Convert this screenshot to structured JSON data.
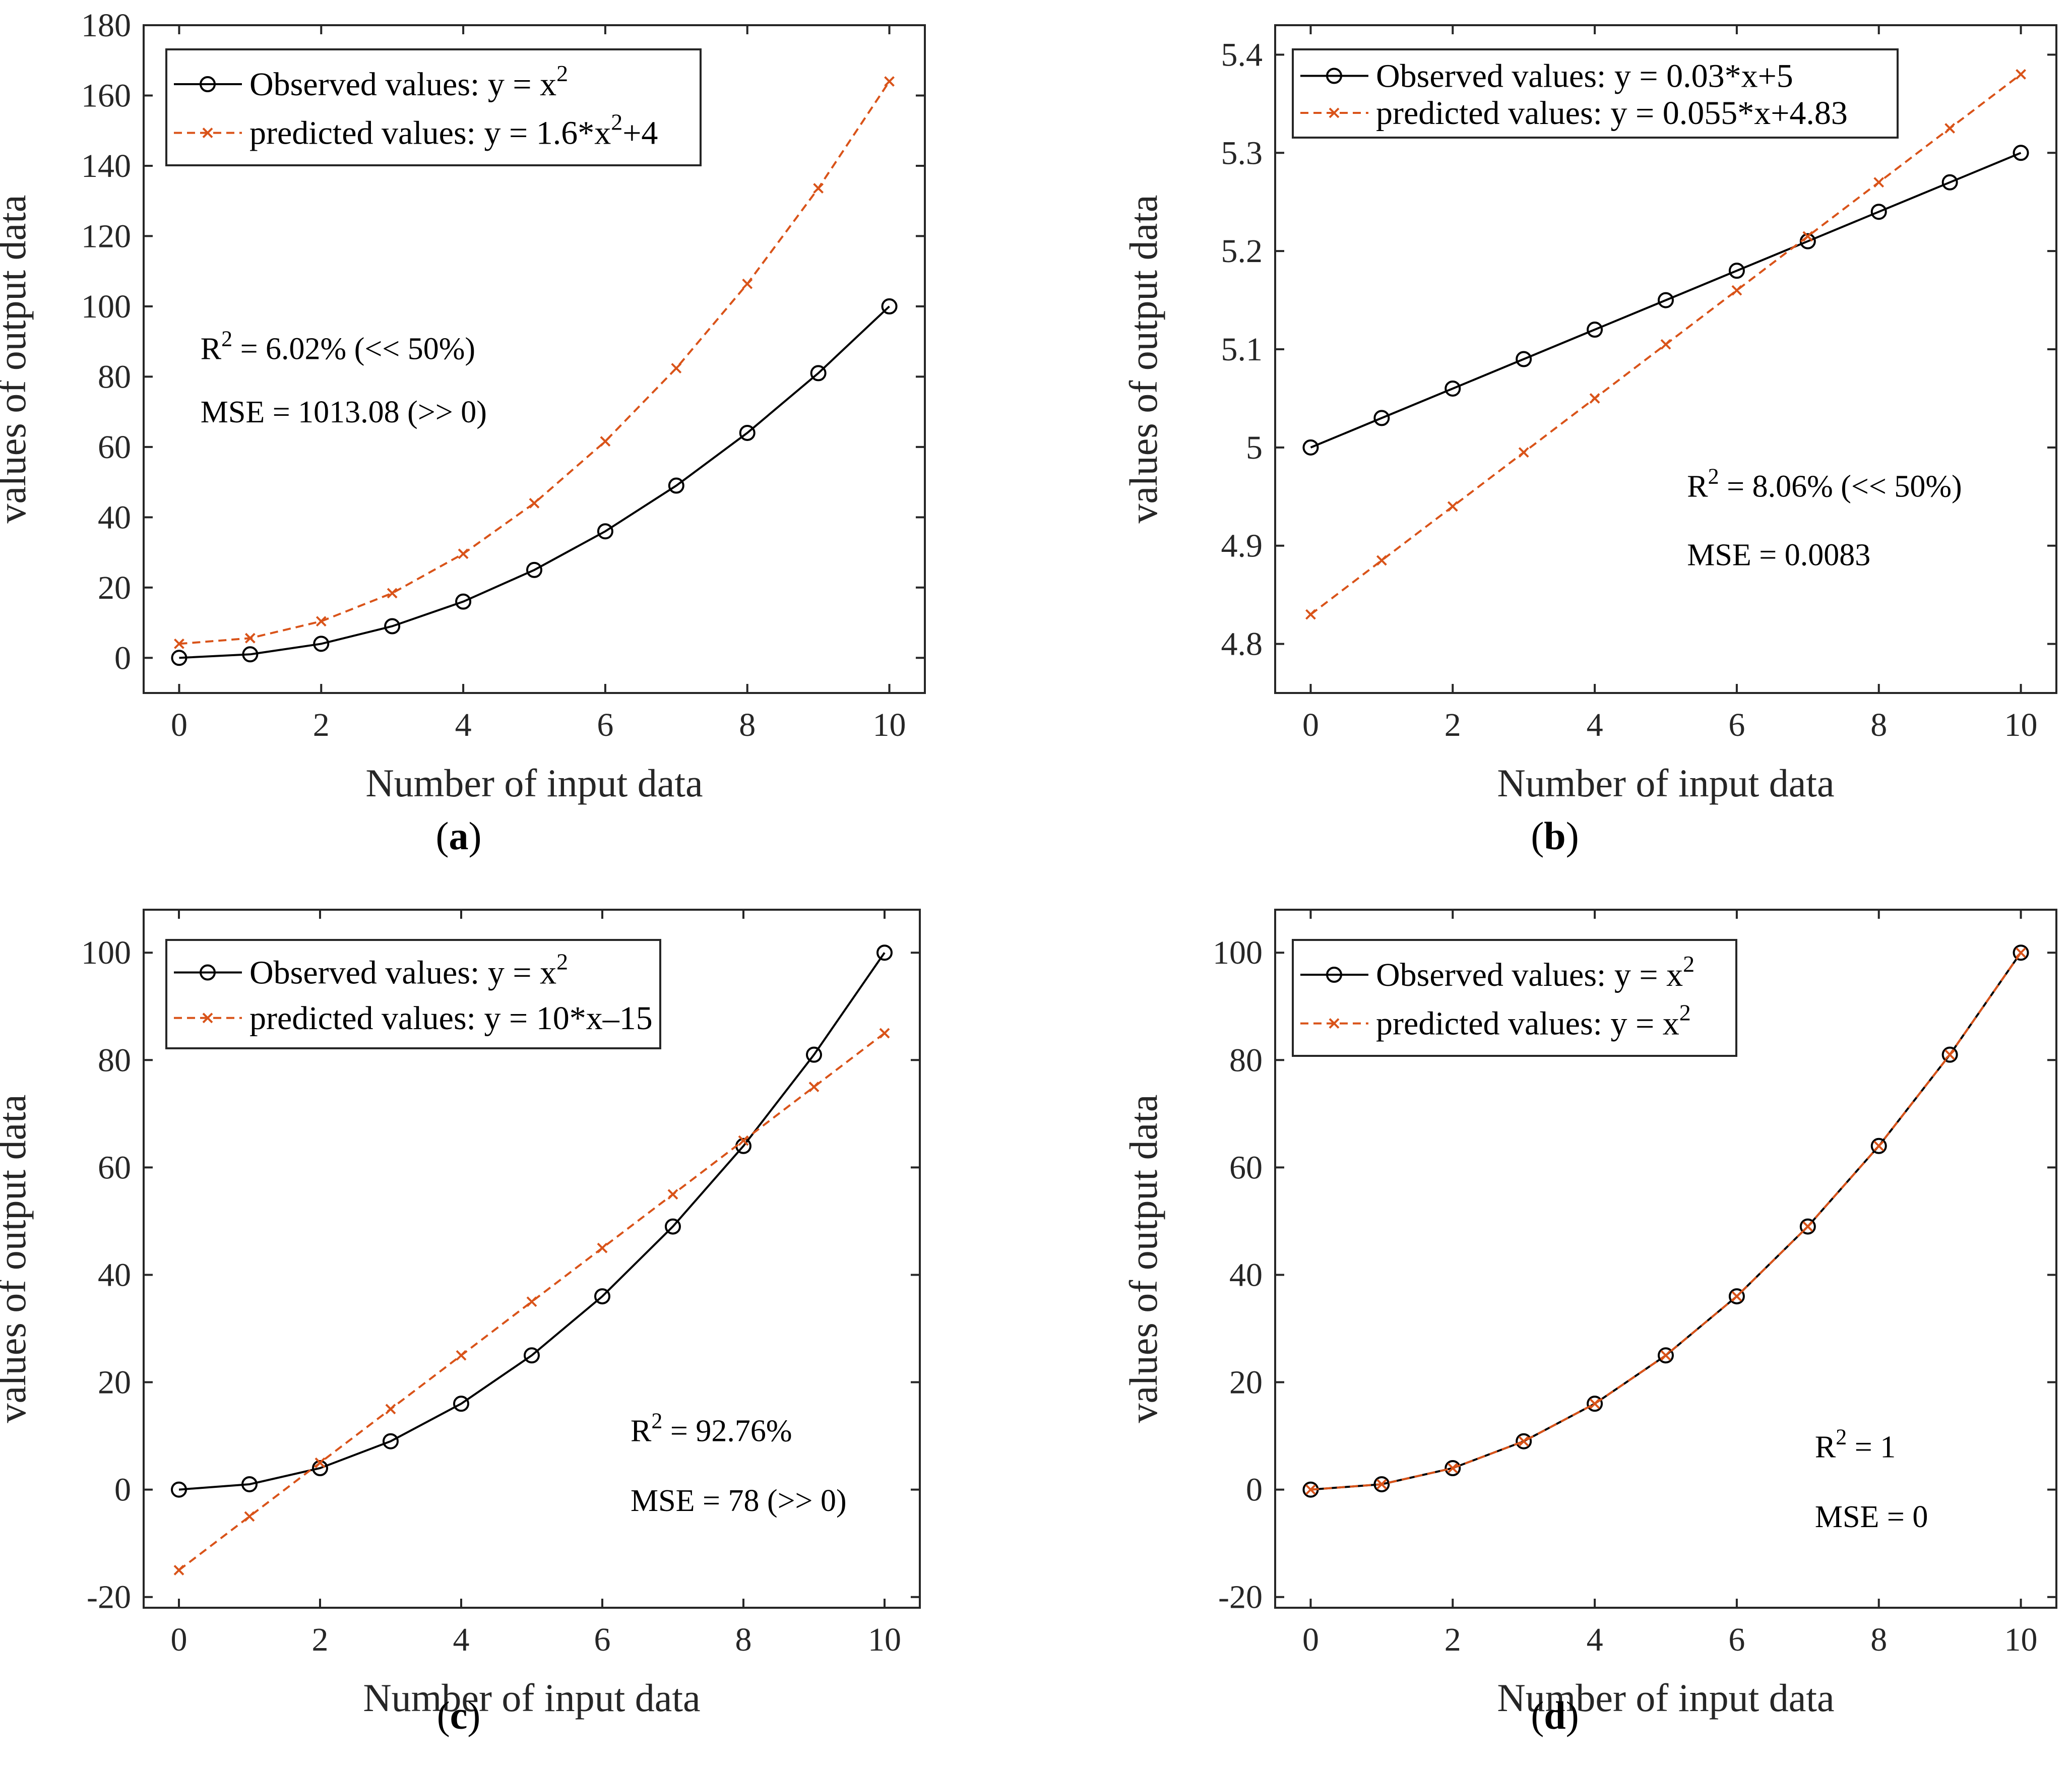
{
  "chart_data": [
    {
      "type": "line",
      "panel": "a",
      "caption_label": "a",
      "xlabel": "Number of input data",
      "ylabel": "values of output data",
      "xlim": [
        -0.5,
        10.5
      ],
      "ylim": [
        -10,
        180
      ],
      "xticks": [
        0,
        2,
        4,
        6,
        8,
        10
      ],
      "yticks": [
        0,
        20,
        40,
        60,
        80,
        100,
        120,
        140,
        160,
        180
      ],
      "x": [
        0,
        1,
        2,
        3,
        4,
        5,
        6,
        7,
        8,
        9,
        10
      ],
      "series": [
        {
          "name": "Observed values: y = x",
          "sup": "2",
          "tail": "",
          "color": "#000000",
          "dash": "solid",
          "marker": "circle",
          "values": [
            0,
            1,
            4,
            9,
            16,
            25,
            36,
            49,
            64,
            81,
            100
          ]
        },
        {
          "name": "predicted values: y = 1.6*x",
          "sup": "2",
          "tail": "+4",
          "color": "#D95319",
          "dash": "dashed",
          "marker": "x",
          "values": [
            4,
            5.6,
            10.4,
            18.4,
            29.6,
            44,
            61.6,
            82.4,
            106.4,
            133.6,
            164
          ]
        }
      ],
      "annotations": {
        "r2_value": " = 6.02% (<< 50%)",
        "mse": "MSE = 1013.08 (>> 0)"
      },
      "annotation_pos": {
        "r2": [
          0.3,
          85
        ],
        "mse": [
          0.3,
          67
        ]
      }
    },
    {
      "type": "line",
      "panel": "b",
      "caption_label": "b",
      "xlabel": "Number of input data",
      "ylabel": "values of output data",
      "xlim": [
        -0.5,
        10.5
      ],
      "ylim": [
        4.75,
        5.43
      ],
      "xticks": [
        0,
        2,
        4,
        6,
        8,
        10
      ],
      "yticks": [
        4.8,
        4.9,
        5,
        5.1,
        5.2,
        5.3,
        5.4
      ],
      "ytick_labels": [
        "4.8",
        "4.9",
        "5",
        "5.1",
        "5.2",
        "5.3",
        "5.4"
      ],
      "x": [
        0,
        1,
        2,
        3,
        4,
        5,
        6,
        7,
        8,
        9,
        10
      ],
      "series": [
        {
          "name": "Observed values: y = 0.03*x+5",
          "sup": "",
          "tail": "",
          "color": "#000000",
          "dash": "solid",
          "marker": "circle",
          "values": [
            5,
            5.03,
            5.06,
            5.09,
            5.12,
            5.15,
            5.18,
            5.21,
            5.24,
            5.27,
            5.3
          ]
        },
        {
          "name": "predicted values: y = 0.055*x+4.83",
          "sup": "",
          "tail": "",
          "color": "#D95319",
          "dash": "dashed",
          "marker": "x",
          "values": [
            4.83,
            4.885,
            4.94,
            4.995,
            5.05,
            5.105,
            5.16,
            5.215,
            5.27,
            5.325,
            5.38
          ]
        }
      ],
      "annotations": {
        "r2_value": " = 8.06% (<< 50%)",
        "mse": "MSE = 0.0083"
      },
      "annotation_pos": {
        "r2": [
          5.3,
          4.95
        ],
        "mse": [
          5.3,
          4.88
        ]
      }
    },
    {
      "type": "line",
      "panel": "c",
      "caption_label": "c",
      "xlabel": "Number of input data",
      "ylabel": "values of output data",
      "xlim": [
        -0.5,
        10.5
      ],
      "ylim": [
        -22,
        108
      ],
      "xticks": [
        0,
        2,
        4,
        6,
        8,
        10
      ],
      "yticks": [
        -20,
        0,
        20,
        40,
        60,
        80,
        100
      ],
      "ytick_labels": [
        "-20",
        "0",
        "20",
        "40",
        "60",
        "80",
        "100"
      ],
      "x": [
        0,
        1,
        2,
        3,
        4,
        5,
        6,
        7,
        8,
        9,
        10
      ],
      "series": [
        {
          "name": "Observed values: y = x",
          "sup": "2",
          "tail": "",
          "color": "#000000",
          "dash": "solid",
          "marker": "circle",
          "values": [
            0,
            1,
            4,
            9,
            16,
            25,
            36,
            49,
            64,
            81,
            100
          ]
        },
        {
          "name": "predicted values: y = 10*x–15",
          "sup": "",
          "tail": "",
          "color": "#D95319",
          "dash": "dashed",
          "marker": "x",
          "values": [
            -15,
            -5,
            5,
            15,
            25,
            35,
            45,
            55,
            65,
            75,
            85
          ]
        }
      ],
      "annotations": {
        "r2_value": " = 92.76%",
        "mse": "MSE = 78 (>> 0)"
      },
      "annotation_pos": {
        "r2": [
          6.4,
          9
        ],
        "mse": [
          6.4,
          -4
        ]
      }
    },
    {
      "type": "line",
      "panel": "d",
      "caption_label": "d",
      "xlabel": "Number of input data",
      "ylabel": "values of output data",
      "xlim": [
        -0.5,
        10.5
      ],
      "ylim": [
        -22,
        108
      ],
      "xticks": [
        0,
        2,
        4,
        6,
        8,
        10
      ],
      "yticks": [
        -20,
        0,
        20,
        40,
        60,
        80,
        100
      ],
      "ytick_labels": [
        "-20",
        "0",
        "20",
        "40",
        "60",
        "80",
        "100"
      ],
      "x": [
        0,
        1,
        2,
        3,
        4,
        5,
        6,
        7,
        8,
        9,
        10
      ],
      "series": [
        {
          "name": "Observed values: y = x",
          "sup": "2",
          "tail": "",
          "color": "#000000",
          "dash": "solid",
          "marker": "circle",
          "values": [
            0,
            1,
            4,
            9,
            16,
            25,
            36,
            49,
            64,
            81,
            100
          ]
        },
        {
          "name": "predicted values: y = x",
          "sup": "2",
          "tail": "",
          "color": "#D95319",
          "dash": "dashed",
          "marker": "x",
          "values": [
            0,
            1,
            4,
            9,
            16,
            25,
            36,
            49,
            64,
            81,
            100
          ]
        }
      ],
      "annotations": {
        "r2_value": " = 1",
        "mse": "MSE = 0"
      },
      "annotation_pos": {
        "r2": [
          7.1,
          6
        ],
        "mse": [
          7.1,
          -7
        ]
      }
    }
  ]
}
